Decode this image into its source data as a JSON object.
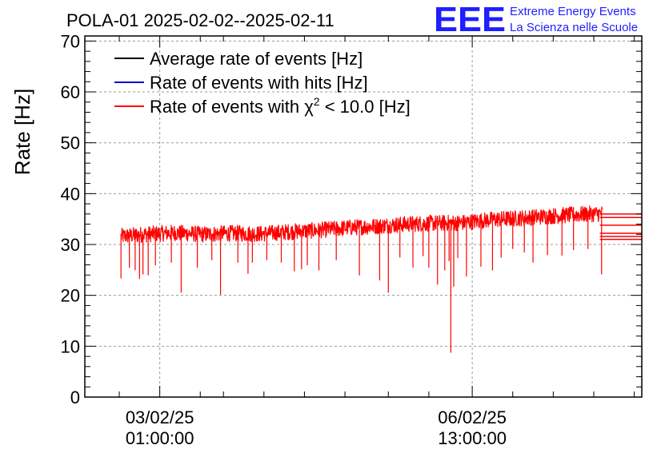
{
  "chart_data": {
    "type": "line",
    "title": "POLA-01 2025-02-02--2025-02-11",
    "ylabel": "Rate [Hz]",
    "xlabel": "",
    "ylim": [
      0,
      71
    ],
    "yticks": [
      0,
      10,
      20,
      30,
      40,
      50,
      60,
      70
    ],
    "x_unit": "hours since 2025-02-02 00:00",
    "xlim": [
      -0.9,
      191.6
    ],
    "xticks": [
      {
        "x": 25,
        "label_date": "03/02/25",
        "label_time": "01:00:00"
      },
      {
        "x": 133,
        "label_date": "06/02/25",
        "label_time": "13:00:00"
      }
    ],
    "minor_xticks": [
      11,
      39,
      47,
      61,
      75,
      89,
      104,
      118,
      147,
      161,
      175,
      189
    ],
    "grid": true,
    "legend_position": "top-left",
    "legend": [
      {
        "label": "Average rate of events [Hz]",
        "color": "#000000"
      },
      {
        "label": "Rate of events with hits [Hz]",
        "color": "#0000cc"
      },
      {
        "label_prefix": "Rate of events with ",
        "label_symbol": "χ",
        "label_sup": "2",
        "label_suffix": " < 10.0 [Hz]",
        "color": "#ff0000"
      }
    ],
    "series": [
      {
        "name": "Rate of events with χ2 < 10.0 [Hz]",
        "color": "#ff0000",
        "x_start": 11.6,
        "x_end": 178.1,
        "baseline": [
          [
            11.6,
            31.6
          ],
          [
            20,
            32.0
          ],
          [
            30,
            32.3
          ],
          [
            40,
            32.0
          ],
          [
            50,
            32.2
          ],
          [
            60,
            32.1
          ],
          [
            70,
            32.5
          ],
          [
            80,
            32.8
          ],
          [
            90,
            33.3
          ],
          [
            100,
            33.6
          ],
          [
            110,
            34.0
          ],
          [
            120,
            34.2
          ],
          [
            130,
            34.3
          ],
          [
            140,
            34.9
          ],
          [
            150,
            35.2
          ],
          [
            160,
            35.6
          ],
          [
            170,
            35.9
          ],
          [
            178.1,
            36.1
          ]
        ],
        "noise_amplitude": 1.6,
        "dips": [
          [
            11.6,
            23.4
          ],
          [
            14.5,
            25.5
          ],
          [
            16.5,
            25.0
          ],
          [
            18.0,
            23.3
          ],
          [
            19.2,
            24.2
          ],
          [
            21.0,
            24.0
          ],
          [
            23.5,
            26.0
          ],
          [
            29.0,
            26.5
          ],
          [
            32.4,
            20.6
          ],
          [
            38.0,
            25.5
          ],
          [
            43.0,
            27.0
          ],
          [
            46.0,
            20.2
          ],
          [
            52.0,
            26.5
          ],
          [
            55.5,
            24.3
          ],
          [
            57.0,
            26.5
          ],
          [
            62.0,
            27.0
          ],
          [
            67.0,
            26.5
          ],
          [
            71.5,
            24.8
          ],
          [
            74.0,
            25.2
          ],
          [
            76.0,
            26.0
          ],
          [
            80.0,
            25.0
          ],
          [
            86.0,
            27.0
          ],
          [
            94.0,
            24.0
          ],
          [
            101.0,
            23.0
          ],
          [
            104.0,
            20.6
          ],
          [
            108.0,
            27.5
          ],
          [
            112.5,
            25.5
          ],
          [
            116.0,
            27.8
          ],
          [
            118.0,
            25.5
          ],
          [
            121.0,
            22.2
          ],
          [
            123.5,
            25.0
          ],
          [
            125.0,
            26.8
          ],
          [
            125.6,
            8.8
          ],
          [
            126.6,
            21.8
          ],
          [
            128.0,
            27.4
          ],
          [
            131.0,
            23.8
          ],
          [
            136.0,
            25.7
          ],
          [
            140.0,
            25.0
          ],
          [
            143.0,
            27.5
          ],
          [
            147.0,
            29.2
          ],
          [
            151.0,
            28.5
          ],
          [
            154.0,
            26.5
          ],
          [
            159.0,
            28.0
          ],
          [
            164.0,
            27.9
          ],
          [
            168.0,
            29.0
          ],
          [
            173.0,
            29.2
          ],
          [
            177.7,
            24.2
          ]
        ],
        "tail_lines": [
          36.0,
          35.3,
          33.8,
          32.2,
          31.6,
          31.0
        ],
        "tail_x_end": 191.6
      }
    ]
  },
  "logo": {
    "mark": "EEE",
    "line1": "Extreme Energy Events",
    "line2": "La Scienza nelle Scuole"
  }
}
